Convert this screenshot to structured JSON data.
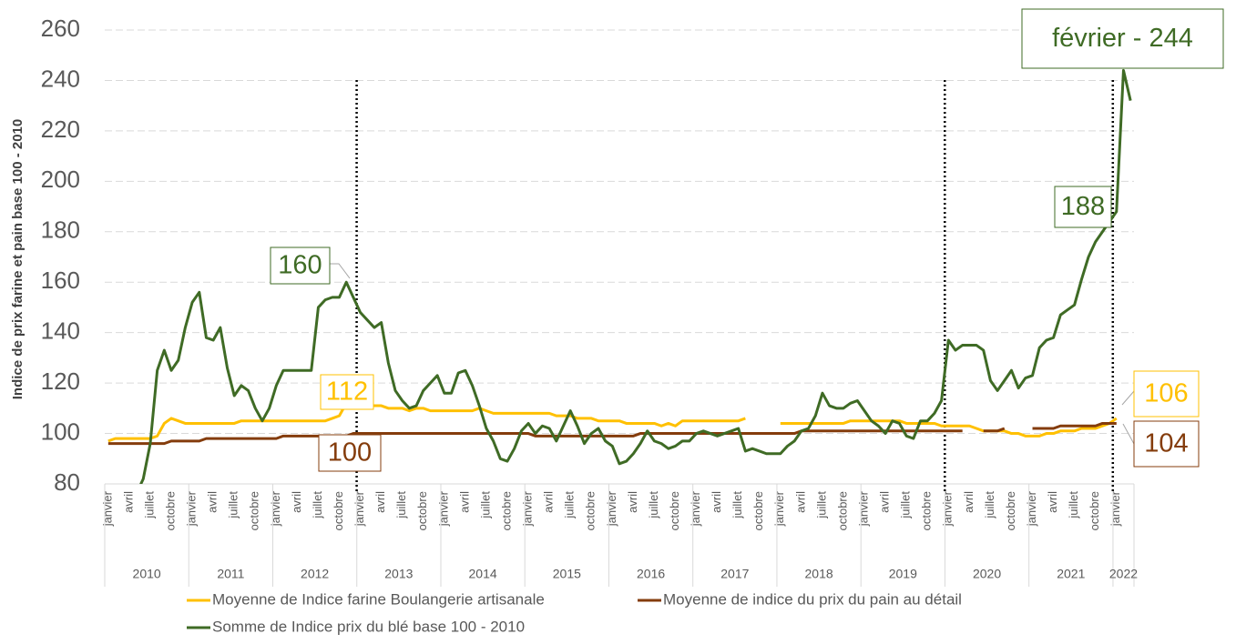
{
  "chart_data": {
    "type": "line",
    "y_label": "Indice de prix farine et pain base 100 - 2010",
    "categories": [
      "janvier",
      null,
      null,
      "avril",
      null,
      null,
      "juillet",
      null,
      null,
      "octobre",
      null,
      null,
      "janvier",
      null,
      null,
      "avril",
      null,
      null,
      "juillet",
      null,
      null,
      "octobre",
      null,
      null,
      "janvier",
      null,
      null,
      "avril",
      null,
      null,
      "juillet",
      null,
      null,
      "octobre",
      null,
      null,
      "janvier",
      null,
      null,
      "avril",
      null,
      null,
      "juillet",
      null,
      null,
      "octobre",
      null,
      null,
      "janvier",
      null,
      null,
      "avril",
      null,
      null,
      "juillet",
      null,
      null,
      "octobre",
      null,
      null,
      "janvier",
      null,
      null,
      "avril",
      null,
      null,
      "juillet",
      null,
      null,
      "octobre",
      null,
      null,
      "janvier",
      null,
      null,
      "avril",
      null,
      null,
      "juillet",
      null,
      null,
      "octobre",
      null,
      null,
      "janvier",
      null,
      null,
      "avril",
      null,
      null,
      "juillet",
      null,
      null,
      "octobre",
      null,
      null,
      "janvier",
      null,
      null,
      "avril",
      null,
      null,
      "juillet",
      null,
      null,
      "octobre",
      null,
      null,
      "janvier",
      null,
      null,
      "avril",
      null,
      null,
      "juillet",
      null,
      null,
      "octobre",
      null,
      null,
      "janvier",
      null,
      null,
      "avril",
      null,
      null,
      "juillet",
      null,
      null,
      "octobre",
      null,
      null,
      "janvier",
      null,
      null,
      "avril",
      null,
      null,
      "juillet",
      null,
      null,
      "octobre",
      null,
      null,
      "janvier",
      null,
      null
    ],
    "years": [
      "2010",
      "2011",
      "2012",
      "2013",
      "2014",
      "2015",
      "2016",
      "2017",
      "2018",
      "2019",
      "2020",
      "2021",
      "2022"
    ],
    "ylim": [
      80,
      260
    ],
    "yticks": [
      80,
      100,
      120,
      140,
      160,
      180,
      200,
      220,
      240,
      260
    ],
    "grid": true,
    "series": [
      {
        "name": "Moyenne de Indice farine Boulangerie artisanale",
        "color": "#ffc000",
        "values": [
          97,
          98,
          98,
          98,
          98,
          98,
          98,
          99,
          104,
          106,
          105,
          104,
          104,
          104,
          104,
          104,
          104,
          104,
          104,
          105,
          105,
          105,
          105,
          105,
          105,
          105,
          105,
          105,
          105,
          105,
          105,
          105,
          106,
          107,
          112,
          112,
          112,
          111,
          111,
          111,
          110,
          110,
          110,
          109,
          110,
          110,
          109,
          109,
          109,
          109,
          109,
          109,
          109,
          110,
          109,
          108,
          108,
          108,
          108,
          108,
          108,
          108,
          108,
          108,
          107,
          107,
          107,
          106,
          106,
          106,
          105,
          105,
          105,
          105,
          104,
          104,
          104,
          104,
          104,
          103,
          104,
          103,
          105,
          105,
          105,
          105,
          105,
          105,
          105,
          105,
          105,
          106,
          null,
          null,
          null,
          null,
          104,
          104,
          104,
          104,
          104,
          104,
          104,
          104,
          104,
          104,
          105,
          105,
          105,
          105,
          105,
          105,
          105,
          105,
          104,
          104,
          104,
          104,
          104,
          103,
          103,
          103,
          103,
          103,
          102,
          101,
          101,
          101,
          101,
          100,
          100,
          99,
          99,
          99,
          100,
          100,
          101,
          101,
          101,
          102,
          102,
          102,
          103,
          104,
          106,
          null,
          null
        ]
      },
      {
        "name": "Moyenne de indice du prix du pain au détail",
        "color": "#843c0c",
        "values": [
          96,
          96,
          96,
          96,
          96,
          96,
          96,
          96,
          96,
          97,
          97,
          97,
          97,
          97,
          98,
          98,
          98,
          98,
          98,
          98,
          98,
          98,
          98,
          98,
          98,
          99,
          99,
          99,
          99,
          99,
          99,
          99,
          99,
          99,
          99,
          100,
          100,
          100,
          100,
          100,
          100,
          100,
          100,
          100,
          100,
          100,
          100,
          100,
          100,
          100,
          100,
          100,
          100,
          100,
          100,
          100,
          100,
          100,
          100,
          100,
          100,
          99,
          99,
          99,
          99,
          99,
          99,
          99,
          99,
          99,
          99,
          99,
          99,
          99,
          99,
          99,
          100,
          100,
          100,
          100,
          100,
          100,
          100,
          100,
          100,
          100,
          100,
          100,
          100,
          100,
          100,
          100,
          100,
          100,
          100,
          100,
          100,
          100,
          100,
          101,
          101,
          101,
          101,
          101,
          101,
          101,
          101,
          101,
          101,
          101,
          101,
          101,
          101,
          101,
          101,
          101,
          101,
          101,
          101,
          101,
          101,
          101,
          101,
          null,
          null,
          101,
          101,
          101,
          102,
          null,
          null,
          null,
          102,
          102,
          102,
          102,
          103,
          103,
          103,
          103,
          103,
          103,
          104,
          104,
          104,
          null,
          null
        ]
      },
      {
        "name": "Somme de Indice prix du blé base 100 - 2010",
        "color": "#3f6b25",
        "values": [
          72,
          70,
          69,
          71,
          76,
          82,
          96,
          125,
          133,
          125,
          129,
          142,
          152,
          156,
          138,
          137,
          142,
          126,
          115,
          119,
          117,
          110,
          105,
          110,
          119,
          125,
          125,
          125,
          125,
          125,
          150,
          153,
          154,
          154,
          160,
          154,
          148,
          145,
          142,
          144,
          128,
          117,
          113,
          110,
          111,
          117,
          120,
          123,
          116,
          116,
          124,
          125,
          119,
          111,
          102,
          97,
          90,
          89,
          94,
          101,
          104,
          100,
          103,
          102,
          97,
          103,
          109,
          103,
          96,
          100,
          102,
          97,
          95,
          88,
          89,
          92,
          96,
          101,
          97,
          96,
          94,
          95,
          97,
          97,
          100,
          101,
          100,
          99,
          100,
          101,
          102,
          93,
          94,
          93,
          92,
          92,
          92,
          95,
          97,
          101,
          102,
          107,
          116,
          111,
          110,
          110,
          112,
          113,
          109,
          105,
          103,
          100,
          105,
          104,
          99,
          98,
          105,
          105,
          108,
          113,
          137,
          133,
          135,
          135,
          135,
          133,
          121,
          117,
          121,
          125,
          118,
          122,
          123,
          134,
          137,
          138,
          147,
          149,
          151,
          161,
          170,
          176,
          180,
          184,
          188,
          244,
          232
        ]
      }
    ],
    "annotations": [
      {
        "text": "160",
        "color": "#3f6b25"
      },
      {
        "text": "112",
        "color": "#ffc000"
      },
      {
        "text": "100",
        "color": "#843c0c"
      },
      {
        "text": "188",
        "color": "#3f6b25"
      },
      {
        "text": "106",
        "color": "#ffc000"
      },
      {
        "text": "104",
        "color": "#843c0c"
      },
      {
        "text": "février - 244",
        "color": "#3f6b25"
      }
    ]
  }
}
